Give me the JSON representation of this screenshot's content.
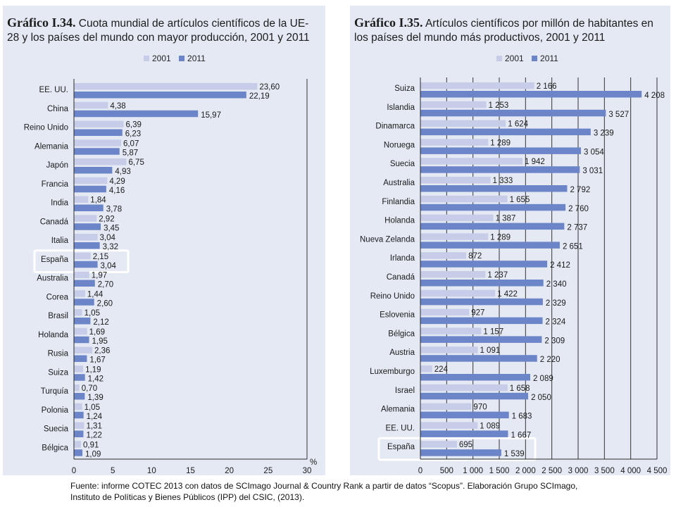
{
  "colors": {
    "y2001": "#c7cde8",
    "y2011": "#6c85c8",
    "axis": "#2a2a2a",
    "grid": "#333333",
    "highlight": "#ffffff"
  },
  "source": "Fuente: informe COTEC 2013  con datos de SCImago Journal & Country Rank a partir de datos “Scopus”. Elaboración Grupo SCImago, Instituto de Políticas y Bienes Públicos (IPP) del CSIC, (2013).",
  "chart_data": [
    {
      "id": "left",
      "type": "bar",
      "orientation": "horizontal",
      "title_bold": "Gráfico I.34.",
      "title": "Cuota mundial de artículos científicos de la UE-28 y los países del mundo con mayor producción, 2001 y 2011",
      "legend": [
        "2001",
        "2011"
      ],
      "unit_label": "%",
      "xlim": [
        0,
        30
      ],
      "ticks": [
        0,
        5,
        10,
        15,
        20,
        25,
        30
      ],
      "tick_labels": [
        "0",
        "5",
        "10",
        "15",
        "20",
        "25",
        "30"
      ],
      "highlight": "España",
      "categories": [
        "EE. UU.",
        "China",
        "Reino Unido",
        "Alemania",
        "Japón",
        "Francia",
        "India",
        "Canadá",
        "Italia",
        "España",
        "Australia",
        "Corea",
        "Brasil",
        "Holanda",
        "Rusia",
        "Suiza",
        "Turquía",
        "Polonia",
        "Suecia",
        "Bélgica"
      ],
      "series": [
        {
          "name": "2001",
          "values": [
            23.6,
            4.38,
            6.39,
            6.07,
            6.75,
            4.29,
            1.84,
            2.92,
            3.04,
            2.15,
            1.97,
            1.44,
            1.05,
            1.69,
            2.36,
            1.19,
            0.7,
            1.05,
            1.31,
            0.91
          ],
          "labels": [
            "23,60",
            "4,38",
            "6,39",
            "6,07",
            "6,75",
            "4,29",
            "1,84",
            "2,92",
            "3,04",
            "2,15",
            "1,97",
            "1,44",
            "1,05",
            "1,69",
            "2,36",
            "1,19",
            "0,70",
            "1,05",
            "1,31",
            "0,91"
          ]
        },
        {
          "name": "2011",
          "values": [
            22.19,
            15.97,
            6.23,
            5.87,
            4.93,
            4.16,
            3.78,
            3.45,
            3.32,
            3.04,
            2.7,
            2.6,
            2.12,
            1.95,
            1.67,
            1.42,
            1.39,
            1.24,
            1.22,
            1.09
          ],
          "labels": [
            "22,19",
            "15,97",
            "6,23",
            "5,87",
            "4,93",
            "4,16",
            "3,78",
            "3,45",
            "3,32",
            "3,04",
            "2,70",
            "2,60",
            "2,12",
            "1,95",
            "1,67",
            "1,42",
            "1,39",
            "1,24",
            "1,22",
            "1,09"
          ]
        }
      ]
    },
    {
      "id": "right",
      "type": "bar",
      "orientation": "horizontal",
      "title_bold": "Gráfico I.35.",
      "title": "Artículos científicos por millón de habitantes en los países del mundo más productivos, 2001 y 2011",
      "legend": [
        "2001",
        "2011"
      ],
      "unit_label": "",
      "xlim": [
        0,
        4500
      ],
      "ticks": [
        0,
        500,
        1000,
        1500,
        2000,
        2500,
        3000,
        3500,
        4000,
        4500
      ],
      "tick_labels": [
        "0",
        "500",
        "1 000",
        "1 500",
        "2 000",
        "2 500",
        "3 000",
        "3 500",
        "4 000",
        "4 500"
      ],
      "highlight": "España",
      "categories": [
        "Suiza",
        "Islandia",
        "Dinamarca",
        "Noruega",
        "Suecia",
        "Australia",
        "Finlandia",
        "Holanda",
        "Nueva Zelanda",
        "Irlanda",
        "Canadá",
        "Reino Unido",
        "Eslovenia",
        "Bélgica",
        "Austria",
        "Luxemburgo",
        "Israel",
        "Alemania",
        "EE. UU.",
        "España"
      ],
      "series": [
        {
          "name": "2001",
          "values": [
            2166,
            1253,
            1624,
            1289,
            1942,
            1333,
            1655,
            1387,
            1289,
            872,
            1237,
            1422,
            927,
            1157,
            1091,
            224,
            1658,
            970,
            1089,
            695
          ],
          "labels": [
            "2 166",
            "1 253",
            "1 624",
            "1 289",
            "1 942",
            "1 333",
            "1 655",
            "1 387",
            "1 289",
            "872",
            "1 237",
            "1 422",
            "927",
            "1 157",
            "1 091",
            "224",
            "1 658",
            "970",
            "1 089",
            "695"
          ]
        },
        {
          "name": "2011",
          "values": [
            4208,
            3527,
            3239,
            3054,
            3031,
            2792,
            2760,
            2737,
            2651,
            2412,
            2340,
            2329,
            2324,
            2309,
            2220,
            2089,
            2050,
            1683,
            1667,
            1539
          ],
          "labels": [
            "4 208",
            "3 527",
            "3 239",
            "3 054",
            "3 031",
            "2 792",
            "2 760",
            "2 737",
            "2 651",
            "2 412",
            "2 340",
            "2 329",
            "2 324",
            "2 309",
            "2 220",
            "2 089",
            "2 050",
            "1 683",
            "1 667",
            "1 539"
          ]
        }
      ]
    }
  ]
}
